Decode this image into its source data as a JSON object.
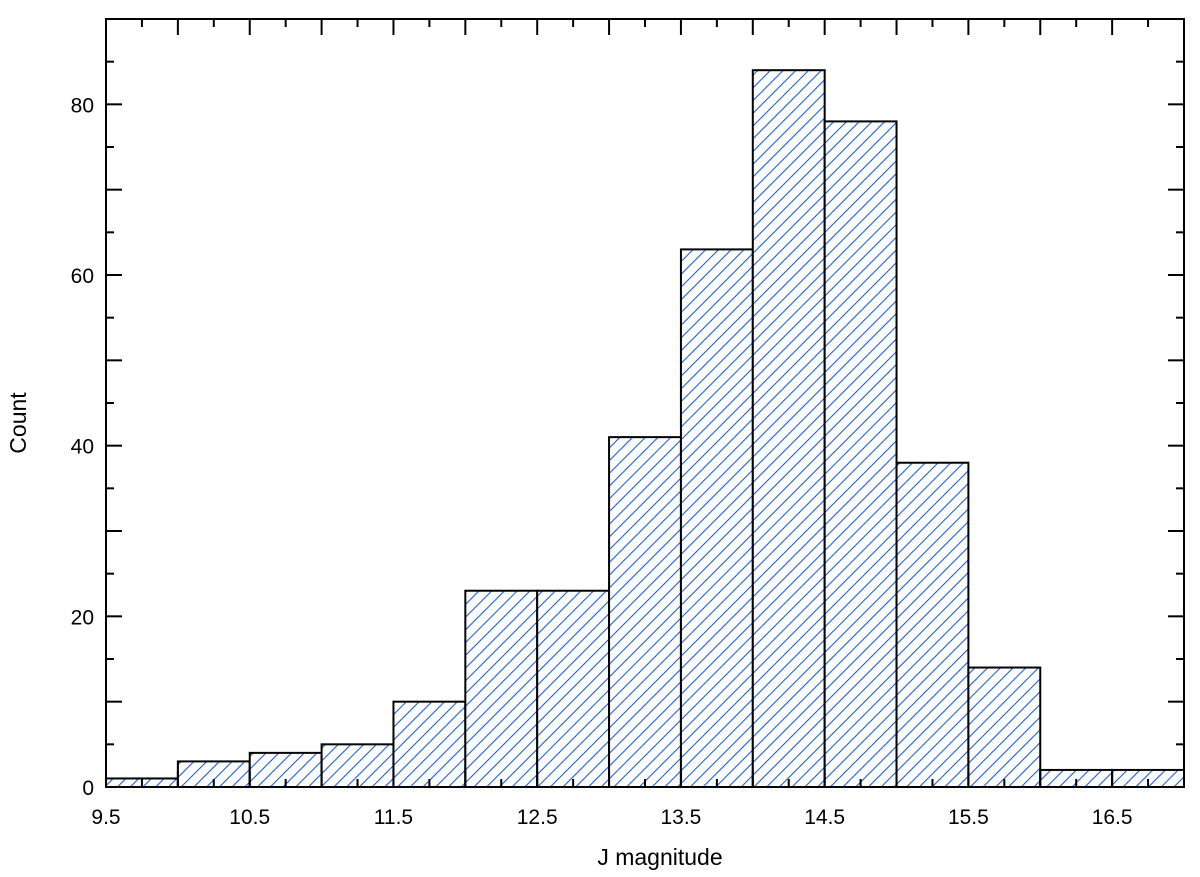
{
  "chart_data": {
    "type": "bar",
    "subtype": "histogram",
    "bin_edges": [
      9.5,
      10.0,
      10.5,
      11.0,
      11.5,
      12.0,
      12.5,
      13.0,
      13.5,
      14.0,
      14.5,
      15.0,
      15.5,
      16.0,
      16.5,
      17.0
    ],
    "values": [
      1,
      3,
      4,
      5,
      10,
      23,
      23,
      41,
      63,
      84,
      78,
      38,
      14,
      2,
      2
    ],
    "xlabel": "J magnitude",
    "ylabel": "Count",
    "xlim": [
      9.5,
      17.0
    ],
    "ylim": [
      0,
      90
    ],
    "x_tick_labels": [
      "9.5",
      "10.5",
      "11.5",
      "12.5",
      "13.5",
      "14.5",
      "15.5",
      "16.5"
    ],
    "y_tick_labels": [
      "0",
      "20",
      "40",
      "60",
      "80"
    ],
    "fill_pattern": "diagonal hatch",
    "hatch_color": "#1f5fe0",
    "edge_color": "#000000",
    "grid": false
  }
}
